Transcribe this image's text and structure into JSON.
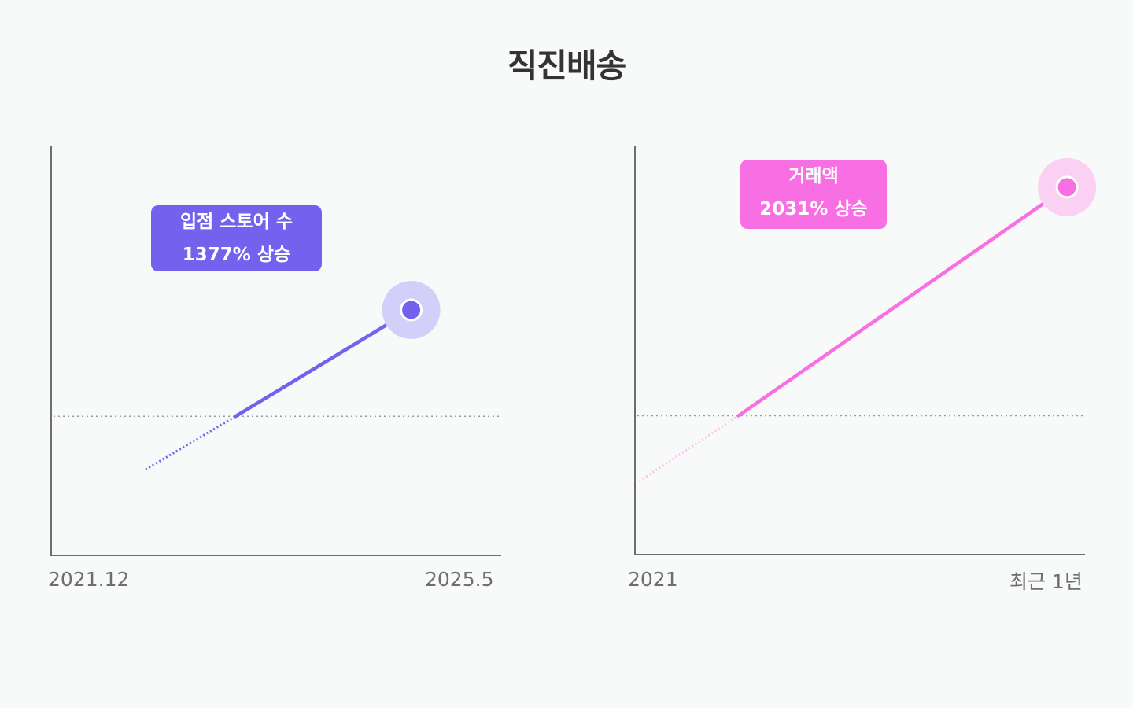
{
  "title": "직진배송",
  "chart_data": [
    {
      "type": "line",
      "x_start_label": "2021.12",
      "x_end_label": "2025.5",
      "series_label": "입점 스토어 수",
      "change_label": "1377% 상승",
      "color": "#7462ee",
      "halo_color": "#d3cffa",
      "baseline_dotted": true,
      "projected_segment_dotted": true,
      "points": [
        {
          "x": 0.21,
          "y": 0.21
        },
        {
          "x": 0.41,
          "y": 0.34
        },
        {
          "x": 0.8,
          "y": 0.6
        }
      ],
      "reference_y": 0.34
    },
    {
      "type": "line",
      "x_start_label": "2021",
      "x_end_label": "최근 1년",
      "series_label": "거래액",
      "change_label": "2031% 상승",
      "color": "#f76fe3",
      "halo_color": "#fad1f3",
      "faded_color": "#f9c6f1",
      "baseline_dotted": true,
      "projected_segment_dotted": true,
      "points": [
        {
          "x": 0.01,
          "y": 0.18
        },
        {
          "x": 0.23,
          "y": 0.34
        },
        {
          "x": 0.96,
          "y": 0.9
        }
      ],
      "reference_y": 0.34
    }
  ]
}
